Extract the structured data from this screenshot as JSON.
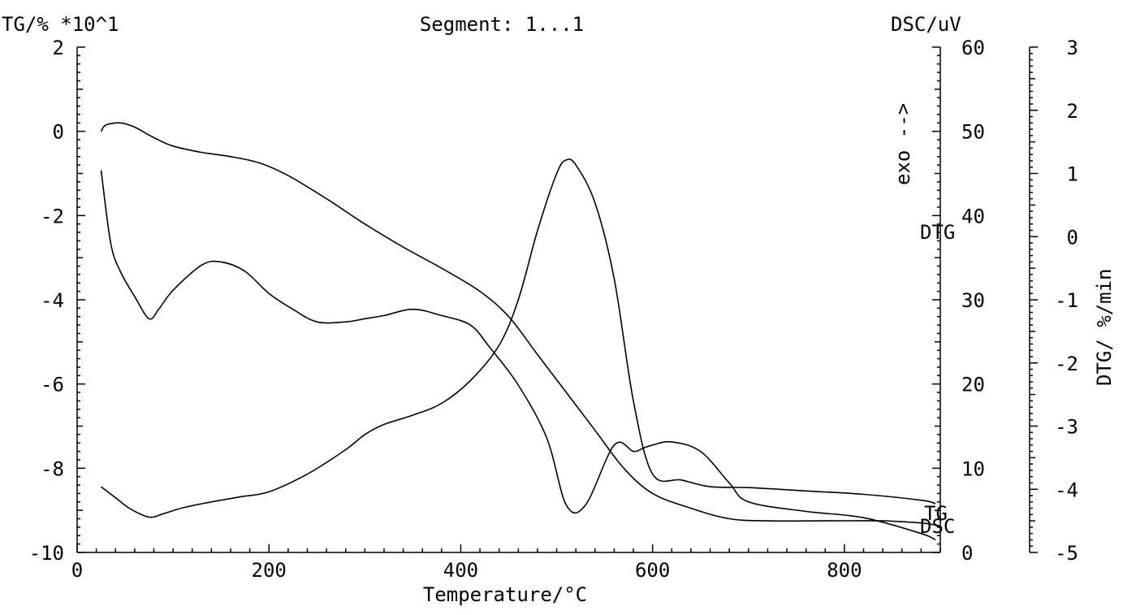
{
  "chart_data": {
    "type": "line",
    "title": "Segment: 1...1",
    "xlabel": "Temperature/°C",
    "xlim": [
      0,
      900
    ],
    "xticks": [
      0,
      200,
      400,
      600,
      800
    ],
    "y_left": {
      "label": "TG/% *10^1",
      "lim": [
        -10,
        2
      ],
      "ticks": [
        -10,
        -8,
        -6,
        -4,
        -2,
        0,
        2
      ]
    },
    "y_right_dsc": {
      "label": "DSC/uV",
      "lim": [
        0,
        60
      ],
      "ticks": [
        0,
        10,
        20,
        30,
        40,
        50,
        60
      ],
      "annotation": "exo -->"
    },
    "y_right_dtg": {
      "label": "DTG/ %/min",
      "lim": [
        -5,
        3
      ],
      "ticks": [
        -5,
        -4,
        -3,
        -2,
        -1,
        0,
        1,
        2,
        3
      ]
    },
    "series": [
      {
        "name": "TG",
        "axis": "left",
        "x": [
          25,
          30,
          45,
          60,
          80,
          100,
          130,
          160,
          190,
          220,
          260,
          300,
          340,
          380,
          420,
          450,
          480,
          510,
          540,
          570,
          600,
          640,
          680,
          720,
          780,
          840,
          880,
          895
        ],
        "y": [
          0,
          0.15,
          0.2,
          0.1,
          -0.15,
          -0.35,
          -0.5,
          -0.6,
          -0.75,
          -1.05,
          -1.6,
          -2.2,
          -2.75,
          -3.25,
          -3.8,
          -4.4,
          -5.3,
          -6.2,
          -7.1,
          -8,
          -8.6,
          -8.95,
          -9.2,
          -9.25,
          -9.25,
          -9.25,
          -9.3,
          -9.35
        ]
      },
      {
        "name": "DSC",
        "axis": "dsc",
        "x": [
          25,
          40,
          55,
          75,
          90,
          110,
          140,
          170,
          200,
          240,
          280,
          300,
          320,
          350,
          380,
          410,
          440,
          460,
          480,
          500,
          510,
          520,
          540,
          560,
          580,
          600,
          630,
          660,
          700,
          760,
          820,
          880,
          895
        ],
        "y": [
          7.8,
          6.5,
          5.2,
          4.2,
          4.6,
          5.3,
          6.0,
          6.6,
          7.2,
          9.3,
          12.2,
          14.0,
          15.2,
          16.3,
          17.7,
          20.4,
          24.6,
          30.0,
          38.2,
          45.0,
          46.6,
          46.0,
          41.5,
          32.5,
          18.0,
          9.3,
          8.6,
          7.8,
          7.7,
          7.3,
          6.9,
          6.2,
          5.8
        ]
      },
      {
        "name": "DTG",
        "axis": "dtg",
        "x": [
          25,
          35,
          45,
          60,
          75,
          85,
          100,
          130,
          150,
          175,
          200,
          225,
          250,
          280,
          300,
          320,
          350,
          380,
          410,
          430,
          460,
          490,
          510,
          530,
          560,
          580,
          590,
          600,
          620,
          650,
          680,
          700,
          760,
          820,
          880,
          895
        ],
        "y": [
          1.05,
          -0.1,
          -0.55,
          -0.95,
          -1.3,
          -1.15,
          -0.85,
          -0.45,
          -0.4,
          -0.55,
          -0.9,
          -1.15,
          -1.35,
          -1.35,
          -1.3,
          -1.25,
          -1.15,
          -1.25,
          -1.4,
          -1.75,
          -2.35,
          -3.2,
          -4.25,
          -4.25,
          -3.3,
          -3.4,
          -3.35,
          -3.3,
          -3.25,
          -3.4,
          -3.9,
          -4.2,
          -4.35,
          -4.45,
          -4.7,
          -4.8
        ]
      }
    ],
    "curve_labels": [
      "DTG",
      "TG",
      "DSC"
    ]
  }
}
